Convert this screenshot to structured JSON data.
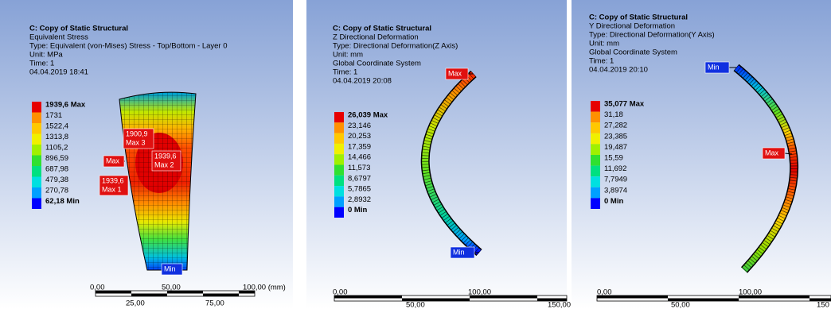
{
  "panels": [
    {
      "header": [
        "C: Copy of Static Structural",
        "Equivalent Stress",
        "Type: Equivalent (von-Mises) Stress - Top/Bottom - Layer 0",
        "Unit: MPa",
        "Time: 1",
        "04.04.2019 18:41"
      ],
      "legend": [
        "1939,6 Max",
        "1731",
        "1522,4",
        "1313,8",
        "1105,2",
        "896,59",
        "687,98",
        "479,38",
        "270,78",
        "62,18 Min"
      ],
      "callouts": [
        {
          "lines": [
            "1900,9",
            "Max 3"
          ]
        },
        {
          "lines": [
            "Max"
          ]
        },
        {
          "lines": [
            "1939,6",
            "Max 2"
          ]
        },
        {
          "lines": [
            "1939,6",
            "Max 1"
          ]
        },
        {
          "lines": [
            "Min"
          ]
        }
      ],
      "scale": {
        "top": [
          "0,00",
          "50,00",
          "100,00 (mm)"
        ],
        "bottom": [
          "25,00",
          "75,00"
        ]
      }
    },
    {
      "header": [
        "C: Copy of Static Structural",
        "Z Directional Deformation",
        "Type: Directional Deformation(Z Axis)",
        "Unit: mm",
        "Global Coordinate System",
        "Time: 1",
        "04.04.2019 20:08"
      ],
      "legend": [
        "26,039 Max",
        "23,146",
        "20,253",
        "17,359",
        "14,466",
        "11,573",
        "8,6797",
        "5,7865",
        "2,8932",
        "0 Min"
      ],
      "callouts": [
        {
          "lines": [
            "Max"
          ]
        },
        {
          "lines": [
            "Min"
          ]
        }
      ],
      "scale": {
        "top": [
          "0,00",
          "100,00"
        ],
        "bottom": [
          "50,00",
          "150,00"
        ]
      }
    },
    {
      "header": [
        "C: Copy of Static Structural",
        "Y Directional Deformation",
        "Type: Directional Deformation(Y Axis)",
        "Unit: mm",
        "Global Coordinate System",
        "Time: 1",
        "04.04.2019 20:10"
      ],
      "legend": [
        "35,077 Max",
        "31,18",
        "27,282",
        "23,385",
        "19,487",
        "15,59",
        "11,692",
        "7,7949",
        "3,8974",
        "0 Min"
      ],
      "callouts": [
        {
          "lines": [
            "Min"
          ]
        },
        {
          "lines": [
            "Max"
          ]
        }
      ],
      "scale": {
        "top": [
          "0,00",
          "100,00"
        ],
        "bottom": [
          "50,00",
          "150"
        ]
      }
    }
  ]
}
